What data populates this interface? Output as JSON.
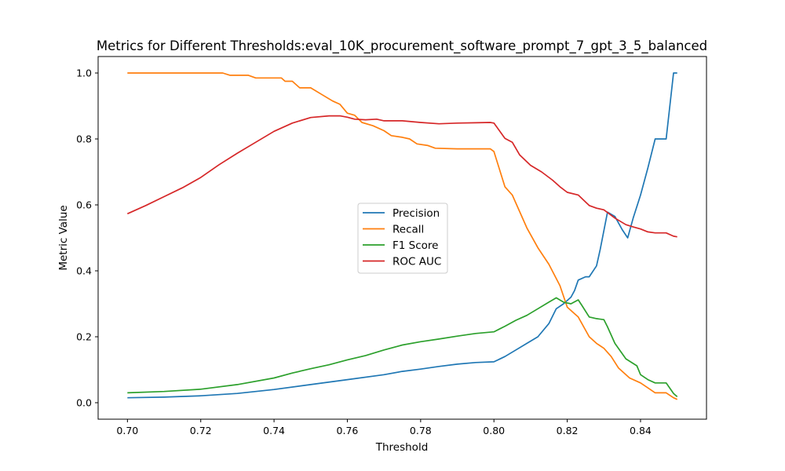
{
  "chart_data": {
    "type": "line",
    "title": "Metrics for Different Thresholds:eval_10K_procurement_software_prompt_7_gpt_3_5_balanced",
    "xlabel": "Threshold",
    "ylabel": "Metric Value",
    "xlim": [
      0.692,
      0.858
    ],
    "ylim": [
      -0.05,
      1.05
    ],
    "xticks": [
      0.7,
      0.72,
      0.74,
      0.76,
      0.78,
      0.8,
      0.82,
      0.84
    ],
    "xtick_labels": [
      "0.70",
      "0.72",
      "0.74",
      "0.76",
      "0.78",
      "0.80",
      "0.82",
      "0.84"
    ],
    "yticks": [
      0.0,
      0.2,
      0.4,
      0.6,
      0.8,
      1.0
    ],
    "ytick_labels": [
      "0.0",
      "0.2",
      "0.4",
      "0.6",
      "0.8",
      "1.0"
    ],
    "grid": false,
    "legend_position": "center",
    "series": [
      {
        "name": "Precision",
        "color": "#1f77b4",
        "points": [
          [
            0.7,
            0.015
          ],
          [
            0.71,
            0.017
          ],
          [
            0.72,
            0.021
          ],
          [
            0.73,
            0.028
          ],
          [
            0.74,
            0.04
          ],
          [
            0.75,
            0.055
          ],
          [
            0.76,
            0.07
          ],
          [
            0.77,
            0.085
          ],
          [
            0.775,
            0.095
          ],
          [
            0.78,
            0.102
          ],
          [
            0.785,
            0.11
          ],
          [
            0.79,
            0.117
          ],
          [
            0.795,
            0.122
          ],
          [
            0.8,
            0.124
          ],
          [
            0.803,
            0.14
          ],
          [
            0.806,
            0.16
          ],
          [
            0.809,
            0.18
          ],
          [
            0.812,
            0.2
          ],
          [
            0.815,
            0.24
          ],
          [
            0.817,
            0.285
          ],
          [
            0.819,
            0.3
          ],
          [
            0.821,
            0.32
          ],
          [
            0.822,
            0.34
          ],
          [
            0.823,
            0.372
          ],
          [
            0.825,
            0.382
          ],
          [
            0.826,
            0.382
          ],
          [
            0.828,
            0.415
          ],
          [
            0.829,
            0.465
          ],
          [
            0.831,
            0.578
          ],
          [
            0.833,
            0.565
          ],
          [
            0.835,
            0.525
          ],
          [
            0.8365,
            0.5
          ],
          [
            0.838,
            0.56
          ],
          [
            0.84,
            0.63
          ],
          [
            0.842,
            0.712
          ],
          [
            0.844,
            0.8
          ],
          [
            0.846,
            0.8
          ],
          [
            0.847,
            0.8
          ],
          [
            0.849,
            1.0
          ],
          [
            0.85,
            1.0
          ]
        ]
      },
      {
        "name": "Recall",
        "color": "#ff7f0e",
        "points": [
          [
            0.7,
            1.0
          ],
          [
            0.712,
            1.0
          ],
          [
            0.726,
            1.0
          ],
          [
            0.728,
            0.993
          ],
          [
            0.733,
            0.993
          ],
          [
            0.735,
            0.985
          ],
          [
            0.742,
            0.985
          ],
          [
            0.743,
            0.975
          ],
          [
            0.745,
            0.975
          ],
          [
            0.747,
            0.955
          ],
          [
            0.75,
            0.955
          ],
          [
            0.753,
            0.935
          ],
          [
            0.756,
            0.915
          ],
          [
            0.758,
            0.905
          ],
          [
            0.76,
            0.878
          ],
          [
            0.762,
            0.872
          ],
          [
            0.764,
            0.85
          ],
          [
            0.767,
            0.84
          ],
          [
            0.77,
            0.825
          ],
          [
            0.772,
            0.81
          ],
          [
            0.775,
            0.805
          ],
          [
            0.777,
            0.8
          ],
          [
            0.779,
            0.785
          ],
          [
            0.782,
            0.78
          ],
          [
            0.784,
            0.772
          ],
          [
            0.79,
            0.77
          ],
          [
            0.795,
            0.77
          ],
          [
            0.799,
            0.77
          ],
          [
            0.8,
            0.762
          ],
          [
            0.803,
            0.655
          ],
          [
            0.805,
            0.63
          ],
          [
            0.807,
            0.58
          ],
          [
            0.809,
            0.53
          ],
          [
            0.812,
            0.47
          ],
          [
            0.815,
            0.42
          ],
          [
            0.818,
            0.355
          ],
          [
            0.82,
            0.29
          ],
          [
            0.822,
            0.27
          ],
          [
            0.823,
            0.26
          ],
          [
            0.826,
            0.2
          ],
          [
            0.828,
            0.18
          ],
          [
            0.83,
            0.165
          ],
          [
            0.832,
            0.14
          ],
          [
            0.834,
            0.105
          ],
          [
            0.837,
            0.075
          ],
          [
            0.84,
            0.06
          ],
          [
            0.842,
            0.045
          ],
          [
            0.844,
            0.03
          ],
          [
            0.847,
            0.03
          ],
          [
            0.849,
            0.015
          ],
          [
            0.85,
            0.01
          ]
        ]
      },
      {
        "name": "F1 Score",
        "color": "#2ca02c",
        "points": [
          [
            0.7,
            0.03
          ],
          [
            0.71,
            0.034
          ],
          [
            0.72,
            0.041
          ],
          [
            0.73,
            0.055
          ],
          [
            0.74,
            0.075
          ],
          [
            0.745,
            0.09
          ],
          [
            0.75,
            0.103
          ],
          [
            0.755,
            0.115
          ],
          [
            0.76,
            0.13
          ],
          [
            0.765,
            0.143
          ],
          [
            0.77,
            0.16
          ],
          [
            0.775,
            0.175
          ],
          [
            0.78,
            0.185
          ],
          [
            0.785,
            0.193
          ],
          [
            0.79,
            0.202
          ],
          [
            0.795,
            0.21
          ],
          [
            0.8,
            0.215
          ],
          [
            0.803,
            0.232
          ],
          [
            0.806,
            0.25
          ],
          [
            0.809,
            0.265
          ],
          [
            0.812,
            0.285
          ],
          [
            0.815,
            0.305
          ],
          [
            0.817,
            0.318
          ],
          [
            0.819,
            0.305
          ],
          [
            0.821,
            0.3
          ],
          [
            0.823,
            0.312
          ],
          [
            0.824,
            0.295
          ],
          [
            0.826,
            0.26
          ],
          [
            0.828,
            0.255
          ],
          [
            0.83,
            0.252
          ],
          [
            0.831,
            0.23
          ],
          [
            0.833,
            0.18
          ],
          [
            0.836,
            0.133
          ],
          [
            0.839,
            0.112
          ],
          [
            0.84,
            0.085
          ],
          [
            0.842,
            0.07
          ],
          [
            0.844,
            0.06
          ],
          [
            0.847,
            0.06
          ],
          [
            0.849,
            0.028
          ],
          [
            0.85,
            0.018
          ]
        ]
      },
      {
        "name": "ROC AUC",
        "color": "#d62728",
        "points": [
          [
            0.7,
            0.573
          ],
          [
            0.705,
            0.598
          ],
          [
            0.71,
            0.625
          ],
          [
            0.715,
            0.652
          ],
          [
            0.72,
            0.683
          ],
          [
            0.725,
            0.722
          ],
          [
            0.73,
            0.757
          ],
          [
            0.735,
            0.79
          ],
          [
            0.74,
            0.823
          ],
          [
            0.745,
            0.848
          ],
          [
            0.75,
            0.865
          ],
          [
            0.755,
            0.87
          ],
          [
            0.758,
            0.87
          ],
          [
            0.76,
            0.866
          ],
          [
            0.762,
            0.86
          ],
          [
            0.765,
            0.858
          ],
          [
            0.768,
            0.86
          ],
          [
            0.77,
            0.855
          ],
          [
            0.775,
            0.855
          ],
          [
            0.78,
            0.85
          ],
          [
            0.785,
            0.846
          ],
          [
            0.79,
            0.848
          ],
          [
            0.795,
            0.849
          ],
          [
            0.799,
            0.85
          ],
          [
            0.8,
            0.848
          ],
          [
            0.803,
            0.802
          ],
          [
            0.805,
            0.79
          ],
          [
            0.807,
            0.752
          ],
          [
            0.81,
            0.72
          ],
          [
            0.813,
            0.7
          ],
          [
            0.816,
            0.675
          ],
          [
            0.818,
            0.655
          ],
          [
            0.82,
            0.638
          ],
          [
            0.823,
            0.63
          ],
          [
            0.826,
            0.598
          ],
          [
            0.828,
            0.59
          ],
          [
            0.83,
            0.585
          ],
          [
            0.833,
            0.56
          ],
          [
            0.836,
            0.54
          ],
          [
            0.838,
            0.533
          ],
          [
            0.84,
            0.527
          ],
          [
            0.842,
            0.518
          ],
          [
            0.844,
            0.515
          ],
          [
            0.847,
            0.515
          ],
          [
            0.849,
            0.505
          ],
          [
            0.85,
            0.503
          ]
        ]
      }
    ]
  }
}
